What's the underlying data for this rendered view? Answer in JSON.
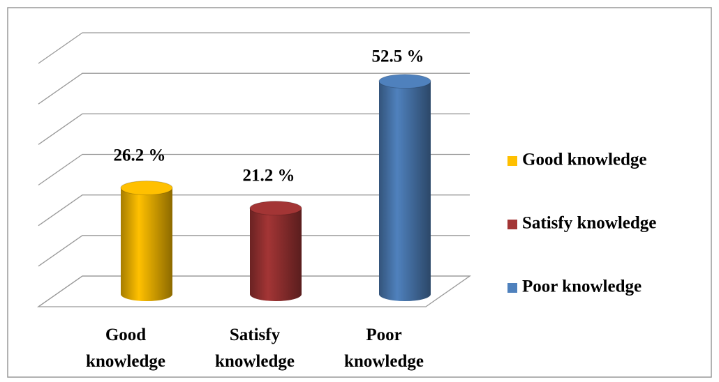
{
  "chart_data": {
    "type": "bar3d",
    "categories": [
      "Good knowledge",
      "Satisfy knowledge",
      "Poor knowledge"
    ],
    "values": [
      26.2,
      21.2,
      52.5
    ],
    "value_labels": [
      "26.2 %",
      "21.2 %",
      "52.5 %"
    ],
    "colors": [
      "#FFC000",
      "#A33535",
      "#4F81BD"
    ],
    "ylim": [
      0,
      60
    ],
    "yticks": [
      0,
      10,
      20,
      30,
      40,
      50,
      60
    ],
    "grid": true,
    "legend": "right"
  }
}
